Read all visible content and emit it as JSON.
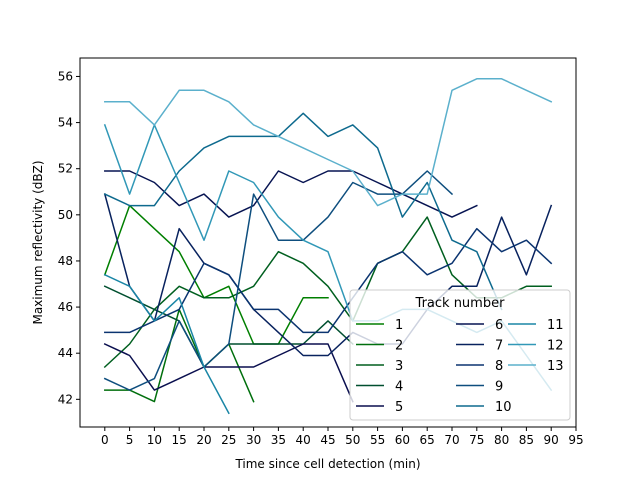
{
  "chart_data": {
    "type": "line",
    "xlabel": "Time since cell detection (min)",
    "ylabel": "Maximum reflectivity (dBZ)",
    "xlim": [
      -5,
      95
    ],
    "ylim": [
      40.8,
      56.8
    ],
    "xticks": [
      "0",
      "5",
      "10",
      "15",
      "20",
      "25",
      "30",
      "35",
      "40",
      "45",
      "50",
      "55",
      "60",
      "65",
      "70",
      "75",
      "80",
      "85",
      "90",
      "95"
    ],
    "yticks": [
      "42",
      "44",
      "46",
      "48",
      "50",
      "52",
      "54",
      "56"
    ],
    "grid": false,
    "legend": {
      "title": "Track number",
      "placement": "lower-right",
      "columns": 3
    },
    "series": [
      {
        "name": "1",
        "color": "#007f00",
        "x": [
          0,
          5,
          10,
          15,
          20,
          25,
          30,
          35,
          40,
          45
        ],
        "y": [
          47.4,
          50.4,
          49.4,
          48.4,
          46.4,
          46.9,
          44.4,
          44.4,
          46.4,
          46.4
        ]
      },
      {
        "name": "2",
        "color": "#006f0d",
        "x": [
          0,
          5,
          10,
          15,
          20,
          25,
          30
        ],
        "y": [
          42.4,
          42.4,
          41.9,
          45.9,
          43.4,
          44.4,
          41.9
        ]
      },
      {
        "name": "3",
        "color": "#005f1f",
        "x": [
          0,
          5,
          10,
          15,
          20,
          25,
          30,
          35,
          40,
          45,
          50,
          55,
          60,
          65,
          70,
          75,
          80,
          85,
          90
        ],
        "y": [
          43.4,
          44.4,
          45.9,
          46.9,
          46.4,
          46.4,
          46.9,
          48.4,
          47.9,
          46.9,
          45.4,
          47.9,
          48.4,
          49.9,
          47.4,
          46.4,
          46.4,
          46.9,
          46.9
        ]
      },
      {
        "name": "4",
        "color": "#004f2f",
        "x": [
          0,
          5,
          10,
          15,
          20,
          25,
          30,
          35,
          40,
          45,
          50
        ],
        "y": [
          46.9,
          46.4,
          45.9,
          45.4,
          43.4,
          44.4,
          44.4,
          44.4,
          44.4,
          45.4,
          44.4
        ]
      },
      {
        "name": "5",
        "color": "#0a0f4f",
        "x": [
          0,
          5,
          10,
          15,
          20,
          25,
          30,
          35,
          40,
          45,
          50
        ],
        "y": [
          44.4,
          43.9,
          42.4,
          42.9,
          43.4,
          43.4,
          43.4,
          43.9,
          44.4,
          44.4,
          41.9
        ]
      },
      {
        "name": "6",
        "color": "#071452",
        "x": [
          0,
          5,
          10,
          15,
          20,
          25,
          30,
          35,
          40,
          45,
          50,
          55,
          60,
          65,
          70,
          75
        ],
        "y": [
          51.9,
          51.9,
          51.4,
          50.4,
          50.9,
          49.9,
          50.4,
          51.9,
          51.4,
          51.9,
          51.9,
          51.4,
          50.9,
          50.4,
          49.9,
          50.4
        ]
      },
      {
        "name": "7",
        "color": "#08225e",
        "x": [
          0,
          5,
          10,
          15,
          20,
          25,
          30,
          35,
          40,
          45,
          50,
          55,
          60,
          65,
          70,
          75,
          80,
          85,
          90
        ],
        "y": [
          50.9,
          46.9,
          45.4,
          49.4,
          47.9,
          47.4,
          45.9,
          44.9,
          43.9,
          43.9,
          44.9,
          44.4,
          44.4,
          45.9,
          46.9,
          46.9,
          49.9,
          47.4,
          50.4
        ]
      },
      {
        "name": "8",
        "color": "#0b3470",
        "x": [
          0,
          5,
          10,
          15,
          20,
          25,
          30,
          35,
          40,
          45,
          50,
          55,
          60,
          65,
          70,
          75,
          80,
          85,
          90
        ],
        "y": [
          44.9,
          44.9,
          45.4,
          45.9,
          47.9,
          47.4,
          45.9,
          45.9,
          44.9,
          44.9,
          46.4,
          47.9,
          48.4,
          47.4,
          47.9,
          49.4,
          48.4,
          48.9,
          47.9
        ]
      },
      {
        "name": "9",
        "color": "#0e4e7e",
        "x": [
          0,
          5,
          10,
          15,
          20,
          25,
          30,
          35,
          40,
          45,
          50,
          55,
          60,
          65,
          70
        ],
        "y": [
          42.9,
          42.4,
          42.9,
          45.4,
          43.4,
          44.4,
          50.9,
          48.9,
          48.9,
          49.9,
          51.4,
          50.9,
          50.9,
          51.9,
          50.9
        ]
      },
      {
        "name": "10",
        "color": "#0e6a8e",
        "x": [
          0,
          5,
          10,
          15,
          20,
          25,
          30,
          35,
          40,
          45,
          50,
          55,
          60,
          65,
          70,
          75,
          80
        ],
        "y": [
          50.9,
          50.4,
          50.4,
          51.9,
          52.9,
          53.4,
          53.4,
          53.4,
          54.4,
          53.4,
          53.9,
          52.9,
          49.9,
          51.4,
          48.9,
          48.4,
          45.9
        ]
      },
      {
        "name": "11",
        "color": "#1a86a6",
        "x": [
          0,
          5,
          10,
          15,
          20,
          25
        ],
        "y": [
          47.4,
          46.9,
          45.4,
          46.4,
          43.4,
          41.4
        ]
      },
      {
        "name": "12",
        "color": "#3198b7",
        "x": [
          0,
          5,
          10,
          15,
          20,
          25,
          30,
          35,
          40,
          45,
          50,
          55,
          60,
          65,
          70,
          75,
          80,
          85,
          90
        ],
        "y": [
          53.9,
          50.9,
          53.9,
          51.4,
          48.9,
          51.9,
          51.4,
          49.9,
          48.9,
          48.4,
          45.4,
          45.4,
          45.9,
          45.9,
          45.4,
          44.9,
          45.4,
          43.9,
          42.4
        ]
      },
      {
        "name": "13",
        "color": "#5bb0cc",
        "x": [
          0,
          5,
          10,
          15,
          20,
          25,
          30,
          35,
          40,
          45,
          50,
          55,
          60,
          65,
          70,
          75,
          80,
          85,
          90
        ],
        "y": [
          54.9,
          54.9,
          53.9,
          55.4,
          55.4,
          54.9,
          53.9,
          53.4,
          52.9,
          52.4,
          51.9,
          50.4,
          50.9,
          50.9,
          55.4,
          55.9,
          55.9,
          55.4,
          54.9
        ]
      }
    ]
  }
}
